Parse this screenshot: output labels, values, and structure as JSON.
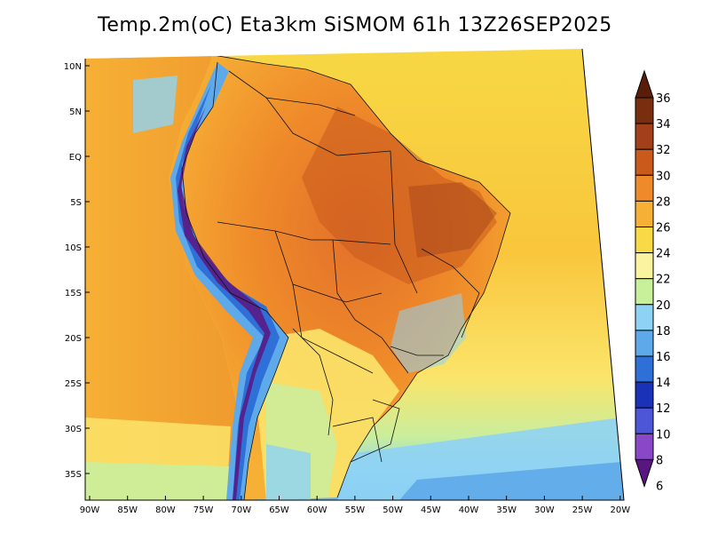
{
  "title": "Temp.2m(oC) Eta3km SiSMOM 61h 13Z26SEP2025",
  "axes": {
    "lat_labels": [
      "10N",
      "5N",
      "EQ",
      "5S",
      "10S",
      "15S",
      "20S",
      "25S",
      "30S",
      "35S"
    ],
    "lon_labels": [
      "90W",
      "85W",
      "80W",
      "75W",
      "70W",
      "65W",
      "60W",
      "55W",
      "50W",
      "45W",
      "40W",
      "35W",
      "30W",
      "25W",
      "20W"
    ]
  },
  "colorbar": {
    "levels": [
      "36",
      "34",
      "32",
      "30",
      "28",
      "26",
      "24",
      "22",
      "20",
      "18",
      "16",
      "14",
      "12",
      "10",
      "8",
      "6"
    ],
    "colors": [
      "#5a1d0a",
      "#7a2e10",
      "#a1401a",
      "#c95a1c",
      "#ef8a2a",
      "#f6b035",
      "#f9d946",
      "#fbf3a0",
      "#c8ef9a",
      "#8fd3f4",
      "#5ea9ea",
      "#2f6fd8",
      "#1a32b8",
      "#4c56d6",
      "#8a48c8",
      "#5a1680"
    ]
  }
}
